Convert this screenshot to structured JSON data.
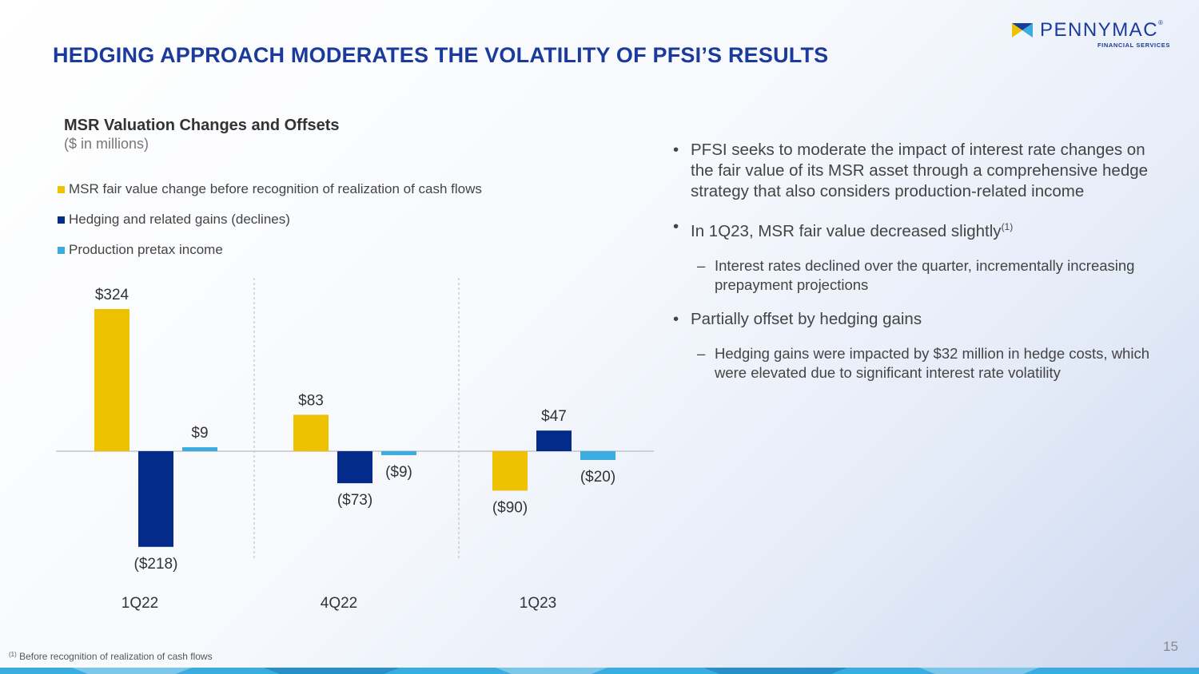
{
  "title": "HEDGING APPROACH MODERATES THE VOLATILITY OF PFSI’S RESULTS",
  "logo": {
    "name": "PENNYMAC",
    "registered": "®",
    "subtitle": "FINANCIAL SERVICES"
  },
  "colors": {
    "gold": "#EEC200",
    "navy": "#042A8A",
    "sky": "#3AACDF",
    "title_blue": "#1A3A9C"
  },
  "chart_data": {
    "type": "bar",
    "title": "MSR Valuation Changes and Offsets",
    "subtitle": "($ in millions)",
    "categories": [
      "1Q22",
      "4Q22",
      "1Q23"
    ],
    "series": [
      {
        "name": "MSR fair value change before recognition of realization of cash flows",
        "color": "#EEC200",
        "values": [
          324,
          83,
          -90
        ],
        "labels": [
          "$324",
          "$83",
          "($90)"
        ]
      },
      {
        "name": "Hedging and related gains (declines)",
        "color": "#042A8A",
        "values": [
          -218,
          -73,
          47
        ],
        "labels": [
          "($218)",
          "($73)",
          "$47"
        ]
      },
      {
        "name": "Production pretax income",
        "color": "#3AACDF",
        "values": [
          9,
          -9,
          -20
        ],
        "labels": [
          "$9",
          "($9)",
          "($20)"
        ]
      }
    ],
    "ylim": [
      -218,
      324
    ],
    "legend_position": "top-left",
    "grid": false
  },
  "bullets": [
    {
      "text": "PFSI seeks to moderate the impact of interest rate changes on the fair value of its MSR asset through a comprehensive hedge strategy that also considers production-related income",
      "fn": "",
      "subs": []
    },
    {
      "text": "In 1Q23, MSR fair value decreased slightly",
      "fn": "(1)",
      "subs": [
        "Interest rates declined over the quarter, incrementally increasing prepayment projections"
      ]
    },
    {
      "text": "Partially offset by hedging gains",
      "fn": "",
      "subs": [
        "Hedging gains were impacted by $32 million in hedge costs, which were elevated due to significant interest rate volatility"
      ]
    }
  ],
  "footnote": {
    "mark": "(1)",
    "text": "Before recognition of realization of cash flows"
  },
  "page_number": "15"
}
